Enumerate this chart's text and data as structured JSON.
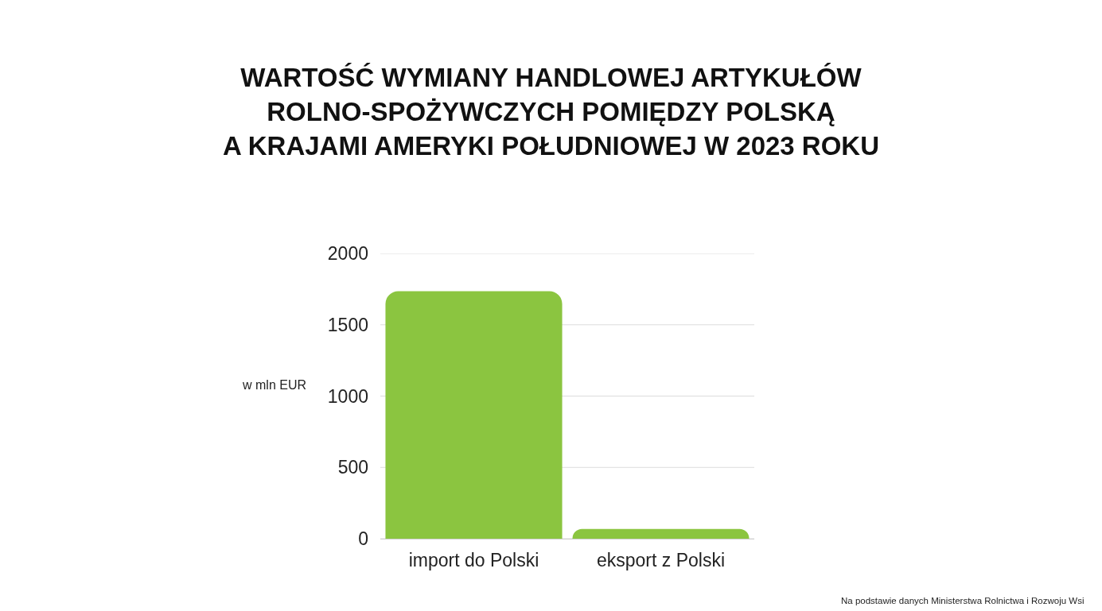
{
  "chart_data": {
    "type": "bar",
    "title": "WARTOŚĆ WYMIANY HANDLOWEJ ARTYKUŁÓW\nROLNO-SPOŻYWCZYCH POMIĘDZY POLSKĄ\nA KRAJAMI AMERYKI POŁUDNIOWEJ W 2023 ROKU",
    "ylabel": "w mln EUR",
    "annotations": [
      "Na podstawie danych Ministerstwa Rolnictwa i Rozwoju Wsi"
    ],
    "categories": [
      "import do Polski",
      "eksport z Polski"
    ],
    "values": [
      1735,
      68
    ],
    "color": "#8bc540",
    "ylim": [
      0,
      2000
    ],
    "yticks": [
      0,
      500,
      1000,
      1500,
      2000
    ],
    "grid": "y"
  }
}
